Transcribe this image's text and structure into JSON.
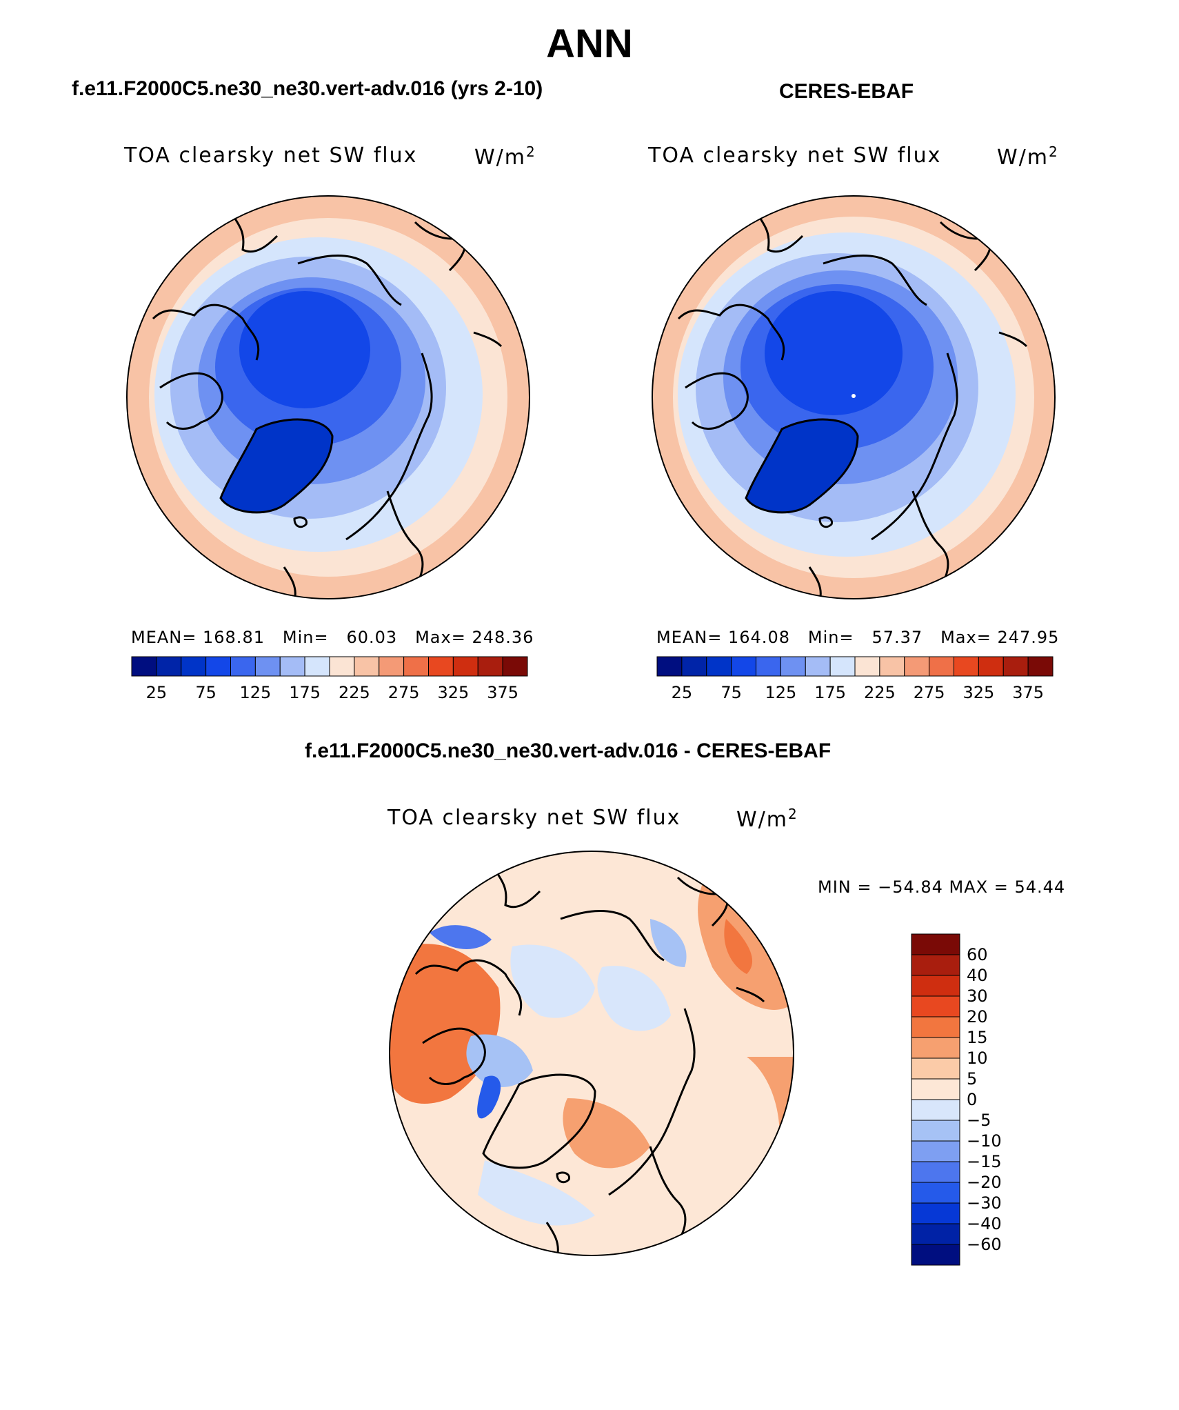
{
  "title": "ANN",
  "panels": [
    {
      "case_title": "f.e11.F2000C5.ne30_ne30.vert-adv.016 (yrs 2-10)",
      "variable": "TOA clearsky net SW flux",
      "units_base": "W/m",
      "units_exp": "2",
      "stats": {
        "mean_label": "MEAN=",
        "mean": "168.81",
        "min_label": "Min=",
        "min": "60.03",
        "max_label": "Max=",
        "max": "248.36"
      }
    },
    {
      "case_title": "CERES-EBAF",
      "variable": "TOA clearsky net SW flux",
      "units_base": "W/m",
      "units_exp": "2",
      "stats": {
        "mean_label": "MEAN=",
        "mean": "164.08",
        "min_label": "Min=",
        "min": "57.37",
        "max_label": "Max=",
        "max": "247.95"
      }
    }
  ],
  "colorbar_abs": {
    "colors": [
      "#000e80",
      "#0024a8",
      "#0034c8",
      "#1347e8",
      "#3a66ee",
      "#6e91f2",
      "#a4bcf6",
      "#d5e5fc",
      "#fbe4d4",
      "#f8c3a6",
      "#f49a76",
      "#ef7048",
      "#e84820",
      "#cf2e10",
      "#a91e0e",
      "#7a0a06"
    ],
    "ticks": [
      "25",
      "75",
      "125",
      "175",
      "225",
      "275",
      "325",
      "375"
    ]
  },
  "diff": {
    "title": "f.e11.F2000C5.ne30_ne30.vert-adv.016 - CERES-EBAF",
    "variable": "TOA clearsky net SW flux",
    "units_base": "W/m",
    "units_exp": "2",
    "minmax": "MIN = −54.84 MAX =  54.44",
    "colors": [
      "#7a0a06",
      "#a91e0e",
      "#cf2e10",
      "#e84820",
      "#f2763f",
      "#f6a070",
      "#fbcba8",
      "#fde7d6",
      "#d8e6fb",
      "#a6c2f5",
      "#7e9ff2",
      "#4d76ee",
      "#255aea",
      "#0638d6",
      "#0022a6",
      "#000e80"
    ],
    "ticks": [
      "60",
      "40",
      "30",
      "20",
      "15",
      "10",
      "5",
      "0",
      "−5",
      "−10",
      "−15",
      "−20",
      "−30",
      "−40",
      "−60"
    ]
  }
}
